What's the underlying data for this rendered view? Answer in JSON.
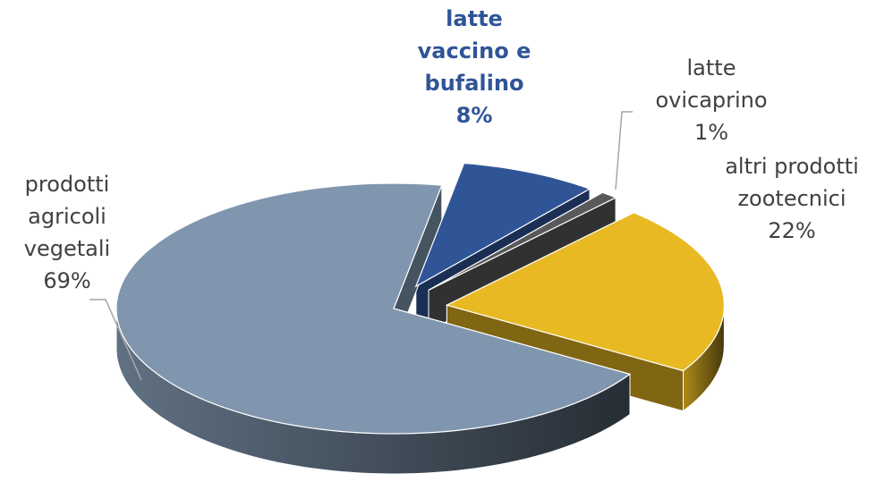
{
  "chart_data": {
    "type": "pie3d",
    "categories": [
      "latte vaccino e bufalino",
      "latte ovicaprino",
      "altri prodotti zootecnici",
      "prodotti agricoli vegetali"
    ],
    "values": [
      8,
      1,
      22,
      69
    ],
    "value_labels": [
      "8%",
      "1%",
      "22%",
      "69%"
    ],
    "colors": [
      "#2f5597",
      "#595959",
      "#e8b923",
      "#8096ae"
    ],
    "highlight": 0
  }
}
